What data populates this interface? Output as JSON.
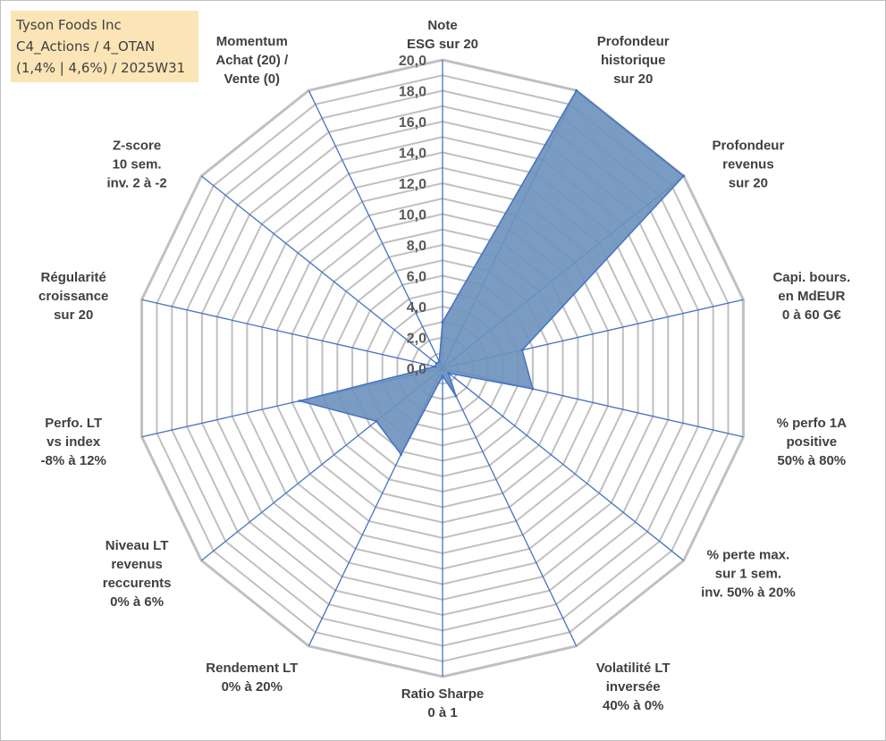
{
  "title_box": {
    "line1": "Tyson Foods Inc",
    "line2": "C4_Actions / 4_OTAN",
    "line3": "(1,4% | 4,6%) / 2025W31"
  },
  "chart_data": {
    "type": "radar",
    "rmin": 0,
    "rmax": 20,
    "tick_step": 2,
    "ticks": [
      "0,0",
      "2,0",
      "4,0",
      "6,0",
      "8,0",
      "10,0",
      "12,0",
      "14,0",
      "16,0",
      "18,0",
      "20,0"
    ],
    "grid": true,
    "legend": "none",
    "fill_color": "#6f93bd",
    "line_color": "#4472c4",
    "grid_color": "#c0c0c0",
    "axes": [
      {
        "label": [
          "Note",
          "ESG sur 20"
        ],
        "value": 3.0
      },
      {
        "label": [
          "Profondeur",
          "historique",
          "sur 20"
        ],
        "value": 20.0
      },
      {
        "label": [
          "Profondeur",
          "revenus",
          "sur 20"
        ],
        "value": 20.0
      },
      {
        "label": [
          "Capi. bours.",
          "en MdEUR",
          "0 à 60 G€"
        ],
        "value": 5.3
      },
      {
        "label": [
          "% perfo 1A",
          "positive",
          "50% à 80%"
        ],
        "value": 6.0
      },
      {
        "label": [
          "% perte max.",
          "sur 1 sem.",
          "inv. 50% à 20%"
        ],
        "value": 0.5
      },
      {
        "label": [
          "Volatilité LT",
          "inversée",
          "40% à 0%"
        ],
        "value": 2.0
      },
      {
        "label": [
          "Ratio Sharpe",
          "0 à 1"
        ],
        "value": 0.5
      },
      {
        "label": [
          "Rendement LT",
          "0% à 20%"
        ],
        "value": 6.2
      },
      {
        "label": [
          "Niveau LT",
          "revenus",
          "reccurents",
          "0% à 6%"
        ],
        "value": 5.5
      },
      {
        "label": [
          "Perfo. LT",
          "vs index",
          "-8% à 12%"
        ],
        "value": 9.5
      },
      {
        "label": [
          "Régularité",
          "croissance",
          "sur 20"
        ],
        "value": 0.5
      },
      {
        "label": [
          "Z-score",
          "10 sem.",
          "inv. 2 à -2"
        ],
        "value": 0.5
      },
      {
        "label": [
          "Momentum",
          "Achat (20) /",
          "Vente (0)"
        ],
        "value": 0.5
      }
    ]
  }
}
